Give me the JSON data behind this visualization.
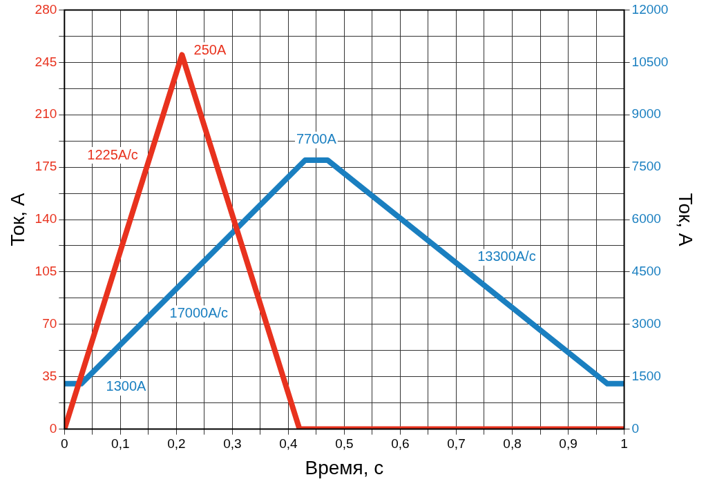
{
  "chart_data": {
    "type": "line",
    "xlabel": "Время, с",
    "ylabel": "Ток, А",
    "y2label": "Ток, А",
    "series": [
      {
        "color": "#e8321e",
        "x": [
          0,
          0.21,
          0.42,
          1
        ],
        "values": [
          0,
          250,
          0,
          0
        ]
      },
      {
        "color": "#1a7fc0",
        "axis": "y2",
        "x": [
          0,
          0.03,
          0.43,
          0.47,
          0.97,
          1
        ],
        "values": [
          1300,
          1300,
          7700,
          7700,
          1300,
          1300
        ]
      }
    ],
    "xlim": [
      0,
      1
    ],
    "xticks": [
      0,
      {
        "value": 0.05,
        "label": null
      },
      {
        "value": 0.1,
        "label": "0,1"
      },
      {
        "value": 0.15,
        "label": null
      },
      {
        "value": 0.2,
        "label": "0,2"
      },
      {
        "value": 0.25,
        "label": null
      },
      {
        "value": 0.3,
        "label": "0,3"
      },
      {
        "value": 0.35,
        "label": null
      },
      {
        "value": 0.4,
        "label": "0,4"
      },
      {
        "value": 0.45,
        "label": null
      },
      {
        "value": 0.5,
        "label": "0,5"
      },
      {
        "value": 0.55,
        "label": null
      },
      {
        "value": 0.6,
        "label": "0,6"
      },
      {
        "value": 0.65,
        "label": null
      },
      {
        "value": 0.7,
        "label": "0,7"
      },
      {
        "value": 0.75,
        "label": null
      },
      {
        "value": 0.8,
        "label": "0,8"
      },
      {
        "value": 0.85,
        "label": null
      },
      {
        "value": 0.9,
        "label": "0,9"
      },
      {
        "value": 0.95,
        "label": null
      },
      1
    ],
    "ylim": [
      0,
      280
    ],
    "yticks": [
      0,
      {
        "value": 17.5,
        "label": null
      },
      35,
      {
        "value": 52.5,
        "label": null
      },
      70,
      {
        "value": 87.5,
        "label": null
      },
      105,
      {
        "value": 122.5,
        "label": null
      },
      140,
      {
        "value": 157.5,
        "label": null
      },
      175,
      {
        "value": 192.5,
        "label": null
      },
      210,
      {
        "value": 227.5,
        "label": null
      },
      245,
      {
        "value": 262.5,
        "label": null
      },
      280
    ],
    "y2lim": [
      0,
      12000
    ],
    "y2ticks": [
      0,
      1500,
      3000,
      4500,
      6000,
      7500,
      9000,
      10500,
      12000
    ],
    "grid": true,
    "legend": false,
    "marker": "none",
    "line_style": "solid",
    "annotations": [
      "250A",
      "1225A/c",
      "7700A",
      "13300A/c",
      "17000A/c",
      "1300A"
    ]
  }
}
